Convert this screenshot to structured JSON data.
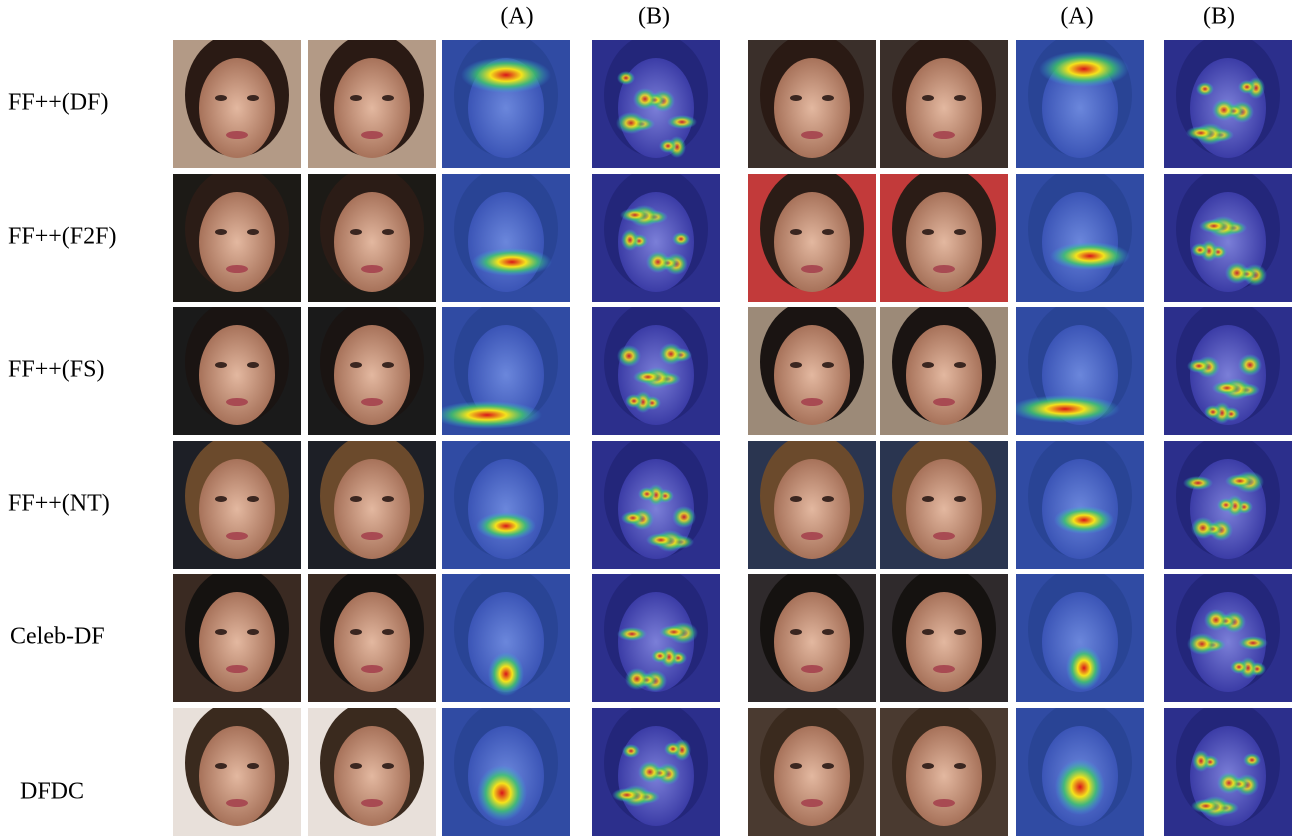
{
  "column_headers": [
    "(A)",
    "(B)",
    "(A)",
    "(B)"
  ],
  "row_labels": [
    "FF++(DF)",
    "FF++(F2F)",
    "FF++(FS)",
    "FF++(NT)",
    "Celeb-DF",
    "DFDC"
  ]
}
